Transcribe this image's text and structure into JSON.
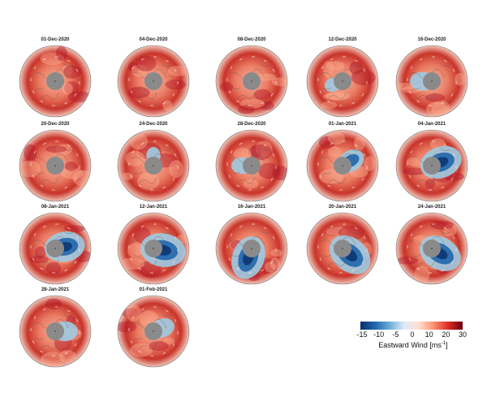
{
  "panels": [
    {
      "date": "01-Dec-2020",
      "col": 0,
      "row": 0,
      "blue_strength": 0.0,
      "blue_angle": 0
    },
    {
      "date": "04-Dec-2020",
      "col": 1,
      "row": 0,
      "blue_strength": 0.0,
      "blue_angle": 0
    },
    {
      "date": "08-Dec-2020",
      "col": 2,
      "row": 0,
      "blue_strength": 0.0,
      "blue_angle": 0
    },
    {
      "date": "12-Dec-2020",
      "col": 3,
      "row": 0,
      "blue_strength": 0.05,
      "blue_angle": 200
    },
    {
      "date": "16-Dec-2020",
      "col": 4,
      "row": 0,
      "blue_strength": 0.25,
      "blue_angle": 180
    },
    {
      "date": "20-Dec-2020",
      "col": 0,
      "row": 1,
      "blue_strength": 0.0,
      "blue_angle": 0
    },
    {
      "date": "24-Dec-2020",
      "col": 1,
      "row": 1,
      "blue_strength": 0.05,
      "blue_angle": 90
    },
    {
      "date": "28-Dec-2020",
      "col": 2,
      "row": 1,
      "blue_strength": 0.15,
      "blue_angle": 180
    },
    {
      "date": "01-Jan-2021",
      "col": 3,
      "row": 1,
      "blue_strength": 0.35,
      "blue_angle": 30
    },
    {
      "date": "04-Jan-2021",
      "col": 4,
      "row": 1,
      "blue_strength": 0.8,
      "blue_angle": 20
    },
    {
      "date": "08-Jan-2021",
      "col": 0,
      "row": 2,
      "blue_strength": 0.75,
      "blue_angle": 10
    },
    {
      "date": "12-Jan-2021",
      "col": 1,
      "row": 2,
      "blue_strength": 0.9,
      "blue_angle": 350
    },
    {
      "date": "16-Jan-2021",
      "col": 2,
      "row": 2,
      "blue_strength": 0.85,
      "blue_angle": 250
    },
    {
      "date": "20-Jan-2021",
      "col": 3,
      "row": 2,
      "blue_strength": 0.9,
      "blue_angle": 320
    },
    {
      "date": "24-Jan-2021",
      "col": 4,
      "row": 2,
      "blue_strength": 0.85,
      "blue_angle": 330
    },
    {
      "date": "28-Jan-2021",
      "col": 0,
      "row": 3,
      "blue_strength": 0.3,
      "blue_angle": 0
    },
    {
      "date": "01-Feb-2021",
      "col": 1,
      "row": 3,
      "blue_strength": 0.25,
      "blue_angle": 20
    }
  ],
  "colorbar": {
    "ticks": [
      "-15",
      "-10",
      "-5",
      "0",
      "10",
      "20",
      "30"
    ],
    "label": "Eastward Wind [ms",
    "label_sup": "-1",
    "label_end": "]",
    "colors": [
      "#08306b",
      "#2166ac",
      "#6baed6",
      "#deebf7",
      "#fee0d2",
      "#fc9272",
      "#de2d26",
      "#67000d"
    ]
  }
}
